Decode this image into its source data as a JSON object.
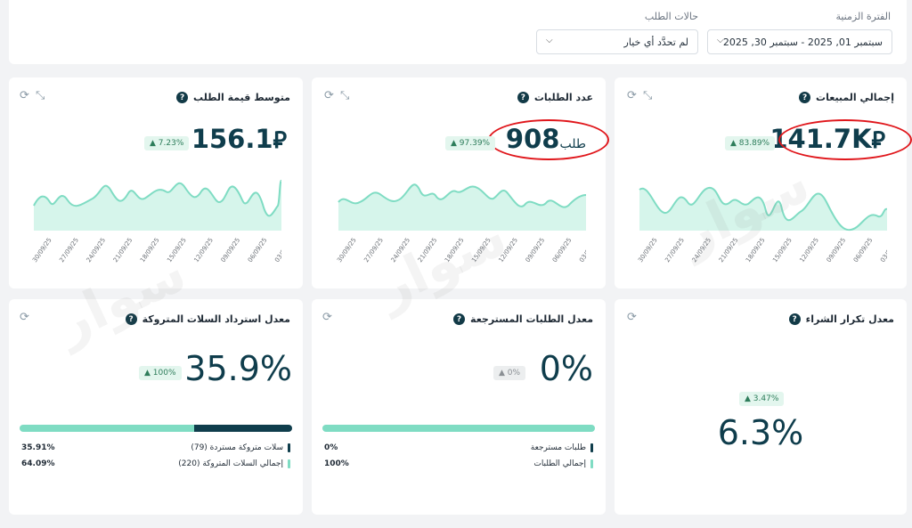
{
  "filters": {
    "period_label": "الفترة الزمنية",
    "period_value": "سبتمبر 01, 2025  -  سبتمبر 30, 2025",
    "status_label": "حالات الطلب",
    "status_value": "لم تحدَّد أي خيار"
  },
  "cards": {
    "total_sales": {
      "title": "إجمالي المبيعات",
      "value": "141.7K",
      "badge": "▲ 83.89%"
    },
    "order_count": {
      "title": "عدد الطلبات",
      "value": "908",
      "unit": "طلب",
      "badge": "▲ 97.39%"
    },
    "avg_order": {
      "title": "متوسط قيمة الطلب",
      "value": "156.1",
      "badge": "▲ 7.23%"
    },
    "repeat_purchase": {
      "title": "معدل تكرار الشراء",
      "value": "6.3%",
      "badge": "▲ 3.47%"
    },
    "returned_orders": {
      "title": "معدل الطلبات المسترجعة",
      "value": "0%",
      "badge": "▲ 0%",
      "legend": [
        {
          "label": "طلبات مسترجعة",
          "pct": "0%"
        },
        {
          "label": "إجمالي الطلبات",
          "pct": "100%"
        }
      ]
    },
    "abandoned_recovery": {
      "title": "معدل استرداد السلات المتروكة",
      "value": "35.9%",
      "badge": "▲ 100%",
      "legend": [
        {
          "label": "سلات متروكة مستردة (79)",
          "pct": "35.91%"
        },
        {
          "label": "إجمالي السلات المتروكة (220)",
          "pct": "64.09%"
        }
      ]
    }
  },
  "x_ticks": [
    "30/09/25",
    "27/09/25",
    "24/09/25",
    "21/09/25",
    "18/09/25",
    "15/09/25",
    "12/09/25",
    "09/09/25",
    "06/09/25",
    "03/09/25"
  ],
  "colors": {
    "accent": "#7fdcc3",
    "dark": "#0f3d4c",
    "highlight": "#e0161b"
  },
  "watermark": "سوار"
}
